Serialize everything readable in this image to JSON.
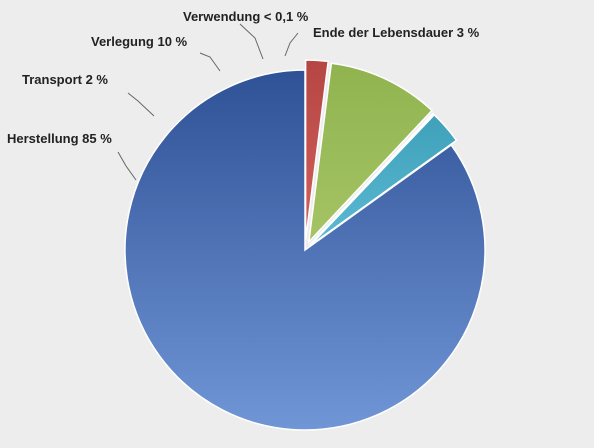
{
  "chart_data": {
    "type": "pie",
    "title": "",
    "slices": [
      {
        "name": "Herstellung",
        "value": 85,
        "label": "Herstellung 85 %",
        "color": "#4a6fb5",
        "color_light": "#7096d6",
        "color_dark": "#2f5196"
      },
      {
        "name": "Transport",
        "value": 2,
        "label": "Transport 2 %",
        "color": "#c0504d",
        "color_light": "#d2605c",
        "color_dark": "#b54643"
      },
      {
        "name": "Verlegung",
        "value": 10,
        "label": "Verlegung 10 %",
        "color": "#9bbb59",
        "color_light": "#a5c465",
        "color_dark": "#90b34f"
      },
      {
        "name": "Verwendung",
        "value": 0.1,
        "label": "Verwendung < 0,1 %",
        "color": "#8064a2",
        "color_light": "#8d73ad",
        "color_dark": "#735995"
      },
      {
        "name": "Ende der Lebensdauer",
        "value": 3,
        "label": "Ende der Lebensdauer 3 %",
        "color": "#4bacc6",
        "color_light": "#5bbad3",
        "color_dark": "#3fa0ba"
      }
    ],
    "legend": "none",
    "exploded": true
  }
}
